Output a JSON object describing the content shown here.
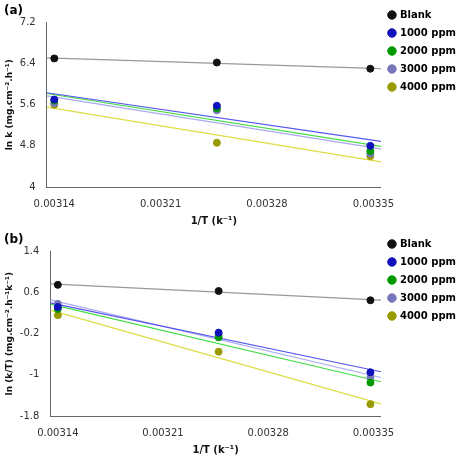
{
  "chart_data": [
    {
      "type": "scatter",
      "title": "(a)",
      "xlabel": "1/T (k⁻¹)",
      "ylabel": "ln k (mg.cm⁻².h⁻¹)",
      "xlim": [
        0.003135,
        0.003355
      ],
      "xticks": [
        0.00314,
        0.00321,
        0.00328,
        0.00335
      ],
      "ylim": [
        4,
        7.2
      ],
      "yticks": [
        4,
        4.8,
        5.6,
        6.4,
        7.2
      ],
      "grid": false,
      "legend": "upper right",
      "series": [
        {
          "name": "Blank",
          "color": "#111111",
          "x": [
            0.00314,
            0.003247,
            0.003348
          ],
          "values": [
            6.5,
            6.42,
            6.3
          ],
          "fit": {
            "x": [
              0.003135,
              0.003355
            ],
            "values": [
              6.5122,
              6.3011
            ],
            "color": "#999999"
          }
        },
        {
          "name": "1000 ppm",
          "color": "#1111bb",
          "x": [
            0.00314,
            0.003247,
            0.003348
          ],
          "values": [
            5.7,
            5.58,
            4.8
          ],
          "fit": {
            "x": [
              0.003135,
              0.003355
            ],
            "values": [
              5.8325,
              4.8875
            ],
            "color": "#5555ee"
          }
        },
        {
          "name": "2000 ppm",
          "color": "#009900",
          "x": [
            0.00314,
            0.003247,
            0.003348
          ],
          "values": [
            5.68,
            5.53,
            4.7
          ],
          "fit": {
            "x": [
              0.003135,
              0.003355
            ],
            "values": [
              5.818,
              4.7887
            ],
            "color": "#44dd44"
          }
        },
        {
          "name": "3000 ppm",
          "color": "#7777bb",
          "x": [
            0.00314,
            0.003247,
            0.003348
          ],
          "values": [
            5.63,
            5.49,
            4.65
          ],
          "fit": {
            "x": [
              0.003135,
              0.003355
            ],
            "values": [
              5.7712,
              4.7421
            ],
            "color": "#aaaaee"
          }
        },
        {
          "name": "4000 ppm",
          "color": "#999900",
          "x": [
            0.00314,
            0.003247,
            0.003348
          ],
          "values": [
            5.6,
            4.86,
            4.6
          ],
          "fit": {
            "x": [
              0.003135,
              0.003355
            ],
            "values": [
              5.5511,
              4.4889
            ],
            "color": "#dddd44"
          }
        }
      ]
    },
    {
      "type": "scatter",
      "title": "(b)",
      "xlabel": "1/T (k⁻¹)",
      "ylabel": "ln (k/T) (mg.cm⁻².h⁻¹k⁻¹)",
      "xlim": [
        0.003135,
        0.003355
      ],
      "xticks": [
        0.00314,
        0.00321,
        0.00328,
        0.00335
      ],
      "ylim": [
        -1.8,
        1.4
      ],
      "yticks": [
        -1.8,
        -1,
        -0.2,
        0.6,
        1.4
      ],
      "grid": false,
      "legend": "upper right",
      "series": [
        {
          "name": "Blank",
          "color": "#111111",
          "x": [
            0.00314,
            0.003247,
            0.003348
          ],
          "values": [
            0.75,
            0.63,
            0.45
          ],
          "fit": {
            "x": [
              0.003135,
              0.003355
            ],
            "values": [
              0.7683,
              0.4517
            ],
            "color": "#999999"
          }
        },
        {
          "name": "1000 ppm",
          "color": "#1111bb",
          "x": [
            0.00314,
            0.003247,
            0.003348
          ],
          "values": [
            0.32,
            -0.18,
            -0.95
          ],
          "fit": {
            "x": [
              0.003135,
              0.003355
            ],
            "values": [
              0.4001,
              -0.9401
            ],
            "color": "#5555ee"
          }
        },
        {
          "name": "2000 ppm",
          "color": "#009900",
          "x": [
            0.00314,
            0.003247,
            0.003348
          ],
          "values": [
            0.28,
            -0.27,
            -1.15
          ],
          "fit": {
            "x": [
              0.003135,
              0.003355
            ],
            "values": [
              0.3744,
              -1.1344
            ],
            "color": "#44dd44"
          }
        },
        {
          "name": "3000 ppm",
          "color": "#7777bb",
          "x": [
            0.00314,
            0.003247,
            0.003348
          ],
          "values": [
            0.38,
            -0.22,
            -1.05
          ],
          "fit": {
            "x": [
              0.003135,
              0.003355
            ],
            "values": [
              0.4582,
              -1.0515
            ],
            "color": "#aaaaee"
          }
        },
        {
          "name": "4000 ppm",
          "color": "#999900",
          "x": [
            0.00314,
            0.003247,
            0.003348
          ],
          "values": [
            0.16,
            -0.55,
            -1.57
          ],
          "fit": {
            "x": [
              0.003135,
              0.003355
            ],
            "values": [
              0.2597,
              -1.5664
            ],
            "color": "#dddd44"
          }
        }
      ]
    }
  ]
}
